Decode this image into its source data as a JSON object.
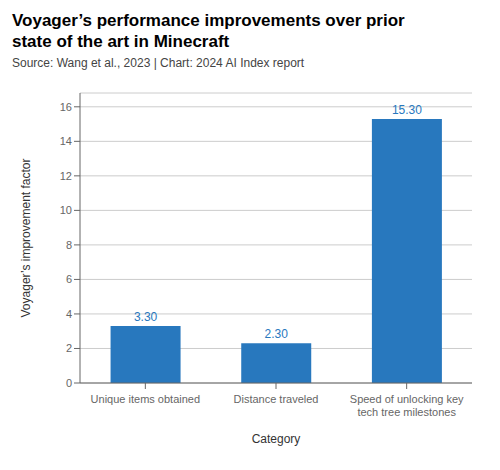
{
  "chart_data": {
    "type": "bar",
    "title": "Voyager’s performance improvements over prior\nstate of the art in Minecraft",
    "subtitle": "Source: Wang et al., 2023 | Chart: 2024 AI Index report",
    "categories": [
      "Unique items obtained",
      "Distance traveled",
      "Speed of unlocking key\ntech tree milestones"
    ],
    "values": [
      3.3,
      2.3,
      15.3
    ],
    "value_labels": [
      "3.30",
      "2.30",
      "15.30"
    ],
    "data_labels": true,
    "color": "#2878BE",
    "xlabel": "Category",
    "ylabel": "Voyager’s improvement factor",
    "ylim": [
      0,
      16.8
    ],
    "yticks": [
      0,
      2,
      4,
      6,
      8,
      10,
      12,
      14,
      16
    ],
    "grid": true
  }
}
